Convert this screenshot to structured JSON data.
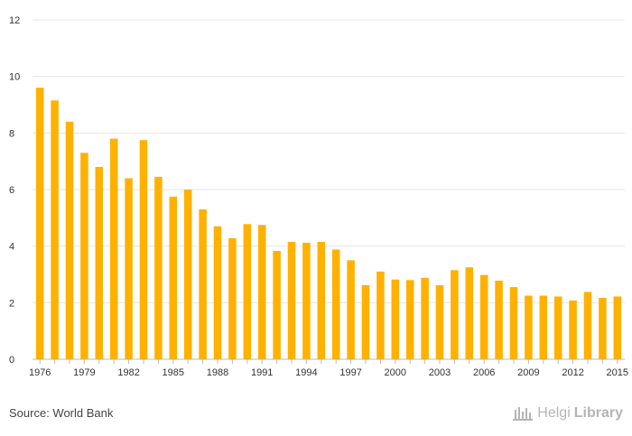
{
  "chart_data": {
    "type": "bar",
    "title": "",
    "xlabel": "",
    "ylabel": "",
    "ylim": [
      0,
      12
    ],
    "yticks": [
      0,
      2,
      4,
      6,
      8,
      10,
      12
    ],
    "grid": true,
    "bar_color": "#ffb100",
    "categories": [
      "1976",
      "1977",
      "1978",
      "1979",
      "1980",
      "1981",
      "1982",
      "1983",
      "1984",
      "1985",
      "1986",
      "1987",
      "1988",
      "1989",
      "1990",
      "1991",
      "1992",
      "1993",
      "1994",
      "1995",
      "1996",
      "1997",
      "1998",
      "1999",
      "2000",
      "2001",
      "2002",
      "2003",
      "2004",
      "2005",
      "2006",
      "2007",
      "2008",
      "2009",
      "2010",
      "2011",
      "2012",
      "2013",
      "2014",
      "2015"
    ],
    "xtick_labels": [
      "1976",
      "1979",
      "1982",
      "1985",
      "1988",
      "1991",
      "1994",
      "1997",
      "2000",
      "2003",
      "2006",
      "2009",
      "2012",
      "2015"
    ],
    "values": [
      9.6,
      9.15,
      8.4,
      7.3,
      6.8,
      7.8,
      6.4,
      7.75,
      6.45,
      5.75,
      6.0,
      5.3,
      4.7,
      4.28,
      4.78,
      4.75,
      3.83,
      4.15,
      4.12,
      4.15,
      3.88,
      3.5,
      2.62,
      3.1,
      2.82,
      2.8,
      2.88,
      2.62,
      3.15,
      3.25,
      2.98,
      2.78,
      2.55,
      2.25,
      2.25,
      2.22,
      2.08,
      2.38,
      2.17,
      2.22
    ]
  },
  "footer": {
    "source": "Source: World Bank",
    "logo_part1": "Helgi",
    "logo_part2": "Library"
  }
}
